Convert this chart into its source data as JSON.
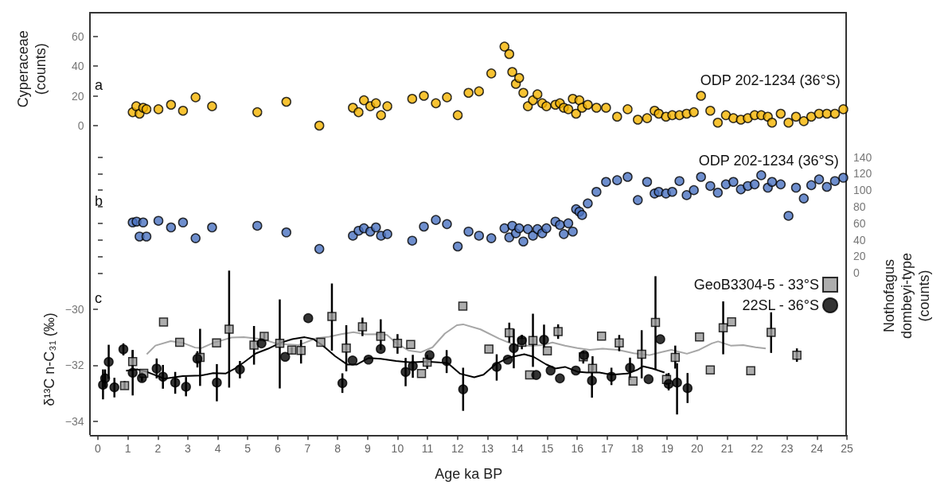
{
  "chart_data": [
    {
      "type": "scatter",
      "ylabel": "Cyperaceae\n(counts)",
      "annotations": [
        "a",
        "ODP 202-1234 (36°S)"
      ],
      "xlim": [
        -0.25,
        25
      ],
      "ylim": [
        0,
        76
      ],
      "yticks": [
        0,
        20,
        40,
        60
      ],
      "tick_labels": "y",
      "marker": "circle",
      "color": "#f5b400",
      "x": [
        1.16,
        1.28,
        1.39,
        1.51,
        1.62,
        2.02,
        2.44,
        2.84,
        3.26,
        3.81,
        5.32,
        6.29,
        7.39,
        8.51,
        8.7,
        8.88,
        9.09,
        9.28,
        9.45,
        9.66,
        10.49,
        10.88,
        11.28,
        11.65,
        12.01,
        12.37,
        12.72,
        13.13,
        13.57,
        13.73,
        13.83,
        13.95,
        14.06,
        14.2,
        14.35,
        14.52,
        14.67,
        14.83,
        14.97,
        15.27,
        15.42,
        15.55,
        15.7,
        15.85,
        15.96,
        16.07,
        16.16,
        16.35,
        16.64,
        16.96,
        17.33,
        17.68,
        18.02,
        18.33,
        18.58,
        18.72,
        18.96,
        19.17,
        19.41,
        19.65,
        19.89,
        20.13,
        20.44,
        20.69,
        20.96,
        21.21,
        21.46,
        21.69,
        21.92,
        22.14,
        22.36,
        22.5,
        22.79,
        23.05,
        23.3,
        23.56,
        23.81,
        24.07,
        24.33,
        24.6,
        24.88
      ],
      "values": [
        9,
        13,
        8,
        12,
        11,
        11,
        14,
        10,
        19,
        13,
        9,
        16,
        0,
        12,
        9,
        17,
        13,
        15,
        7,
        13,
        18,
        20,
        15,
        19,
        7,
        22,
        23,
        35,
        53,
        48,
        36,
        28,
        32,
        22,
        13,
        17,
        21,
        15,
        13,
        14,
        15,
        12,
        11,
        18,
        8,
        17,
        12,
        14,
        12,
        12,
        6,
        11,
        4,
        5,
        10,
        8,
        6,
        7,
        7,
        8,
        9,
        20,
        10,
        2,
        7,
        5,
        4,
        5,
        7,
        7,
        6,
        2,
        8,
        2,
        6,
        3,
        6,
        8,
        8,
        8,
        11
      ]
    },
    {
      "type": "scatter",
      "ylabel": "Nothofagus\ndombeyi-type\n(counts)",
      "annotations": [
        "b",
        "ODP 202-1234 (36°S)"
      ],
      "xlim": [
        -0.25,
        25
      ],
      "ylim": [
        -195,
        140
      ],
      "yticks": [
        0,
        20,
        40,
        60,
        80,
        100,
        120,
        140
      ],
      "tick_labels": "y",
      "marker": "circle",
      "color": "#4a72c0",
      "x": [
        1.16,
        1.29,
        1.39,
        1.51,
        1.62,
        2.02,
        2.44,
        2.84,
        3.26,
        3.81,
        5.32,
        6.29,
        7.39,
        8.51,
        8.7,
        8.88,
        9.09,
        9.28,
        9.45,
        9.66,
        10.49,
        10.88,
        11.28,
        11.65,
        12.01,
        12.37,
        12.72,
        13.13,
        13.57,
        13.73,
        13.83,
        13.95,
        14.06,
        14.2,
        14.35,
        14.52,
        14.67,
        14.83,
        14.97,
        15.27,
        15.42,
        15.55,
        15.7,
        15.85,
        15.96,
        16.07,
        16.16,
        16.35,
        16.64,
        16.96,
        17.33,
        17.68,
        18.02,
        18.33,
        18.58,
        18.72,
        18.96,
        19.17,
        19.41,
        19.65,
        19.89,
        20.13,
        20.44,
        20.69,
        20.96,
        21.21,
        21.46,
        21.69,
        21.92,
        22.14,
        22.36,
        22.5,
        22.79,
        23.05,
        23.3,
        23.56,
        23.81,
        24.07,
        24.33,
        24.6,
        24.88
      ],
      "values": [
        61,
        62,
        44,
        61,
        44,
        63,
        55,
        61,
        42,
        55,
        57,
        49,
        29,
        45,
        51,
        54,
        50,
        55,
        45,
        47,
        39,
        56,
        64,
        59,
        32,
        50,
        45,
        42,
        54,
        43,
        57,
        48,
        54,
        38,
        53,
        45,
        53,
        48,
        54,
        62,
        58,
        47,
        60,
        50,
        77,
        74,
        70,
        84,
        98,
        110,
        112,
        116,
        88,
        110,
        96,
        98,
        96,
        98,
        111,
        94,
        100,
        116,
        105,
        97,
        107,
        110,
        101,
        105,
        107,
        118,
        103,
        110,
        107,
        69,
        103,
        90,
        106,
        113,
        104,
        111,
        115
      ]
    },
    {
      "type": "scatter",
      "xlabel": "Age ka BP",
      "ylabel": "δ¹³C n-C₃₁ (‰)",
      "annotations": [
        "c"
      ],
      "xlim": [
        -0.25,
        25
      ],
      "xticks": [
        0,
        1,
        2,
        3,
        4,
        5,
        6,
        7,
        8,
        9,
        10,
        11,
        12,
        13,
        14,
        15,
        16,
        17,
        18,
        19,
        20,
        21,
        22,
        23,
        24,
        25
      ],
      "ylim": [
        -34.5,
        -19.4
      ],
      "yticks": [
        -34,
        -32,
        -30
      ],
      "legend": "right",
      "series": [
        {
          "name": "GeoB3304-5 - 33°S",
          "marker": "square",
          "color": "#999999",
          "x": [
            0.89,
            1.16,
            1.53,
            2.19,
            2.73,
            3.41,
            3.96,
            4.38,
            5.21,
            5.55,
            6.07,
            6.47,
            6.78,
            7.44,
            7.81,
            8.29,
            8.83,
            9.44,
            10.0,
            10.44,
            10.8,
            10.99,
            12.18,
            13.05,
            13.73,
            14.15,
            14.41,
            14.52,
            15.0,
            15.36,
            16.2,
            16.51,
            16.81,
            17.4,
            17.86,
            18.15,
            18.61,
            18.98,
            19.27,
            20.08,
            20.44,
            20.87,
            21.15,
            21.79,
            22.47,
            23.33
          ],
          "values": [
            -32.73,
            -31.87,
            -32.29,
            -30.46,
            -31.18,
            -31.72,
            -31.2,
            -30.71,
            -31.28,
            -30.97,
            -31.22,
            -31.46,
            -31.47,
            -31.18,
            -30.26,
            -31.39,
            -30.63,
            -30.97,
            -31.22,
            -31.26,
            -32.3,
            -31.89,
            -29.89,
            -31.42,
            -30.84,
            -31.18,
            -32.35,
            -31.12,
            -31.49,
            -30.8,
            -31.7,
            -32.11,
            -30.96,
            -31.2,
            -32.57,
            -31.61,
            -30.47,
            -32.51,
            -31.72,
            -30.99,
            -32.17,
            -30.66,
            -30.45,
            -32.2,
            -30.83,
            -31.64
          ],
          "errors": [
            [
              -32.85,
              -32.57
            ],
            [
              -32.2,
              -31.46
            ],
            null,
            null,
            null,
            [
              -32.74,
              -30.7
            ],
            null,
            [
              -32.8,
              -28.62
            ],
            [
              -31.98,
              -30.6
            ],
            [
              -31.15,
              -30.85
            ],
            [
              -32.83,
              -29.65
            ],
            [
              -31.6,
              -31.35
            ],
            [
              -31.94,
              -31.09
            ],
            null,
            [
              -31.48,
              -29.08
            ],
            [
              -32.22,
              -30.57
            ],
            [
              -30.96,
              -30.3
            ],
            [
              -31.45,
              -30.36
            ],
            [
              -31.59,
              -30.89
            ],
            null,
            null,
            [
              -32.13,
              -31.63
            ],
            null,
            null,
            [
              -31.19,
              -30.48
            ],
            [
              -31.43,
              -30.92
            ],
            null,
            [
              -32.06,
              -30.16
            ],
            null,
            [
              -31.06,
              -30.54
            ],
            [
              -31.94,
              -31.48
            ],
            [
              -32.2,
              -31.68
            ],
            null,
            [
              -31.5,
              -30.92
            ],
            null,
            [
              -32.47,
              -30.75
            ],
            [
              -32.14,
              -28.82
            ],
            [
              -32.7,
              -32.3
            ],
            [
              -32.12,
              -31.3
            ],
            null,
            null,
            [
              -31.61,
              -29.72
            ],
            null,
            null,
            [
              -31.56,
              -30.11
            ],
            [
              -31.88,
              -31.4
            ]
          ]
        },
        {
          "name": "22SL - 36°S",
          "marker": "circle",
          "color": "#000000",
          "x": [
            0.17,
            0.24,
            0.36,
            0.55,
            0.85,
            1.16,
            1.47,
            1.96,
            2.17,
            2.58,
            2.94,
            3.32,
            3.97,
            4.74,
            5.46,
            6.25,
            7.02,
            8.16,
            8.5,
            9.03,
            9.44,
            10.27,
            10.51,
            11.07,
            11.64,
            12.19,
            13.31,
            13.68,
            13.88,
            14.15,
            14.63,
            14.89,
            15.11,
            15.42,
            15.95,
            16.23,
            16.49,
            17.14,
            17.76,
            18.38,
            18.77,
            19.05,
            19.33,
            19.68
          ],
          "values": [
            -32.7,
            -32.47,
            -31.88,
            -32.79,
            -31.43,
            -32.27,
            -32.46,
            -32.12,
            -32.41,
            -32.62,
            -32.77,
            -31.77,
            -32.62,
            -32.15,
            -31.22,
            -31.7,
            -30.32,
            -32.64,
            -31.83,
            -31.8,
            -31.42,
            -32.24,
            -32.03,
            -31.64,
            -31.85,
            -32.86,
            -32.06,
            -31.8,
            -31.39,
            -31.11,
            -32.35,
            -31.09,
            -32.19,
            -32.47,
            -32.19,
            -31.64,
            -32.55,
            -32.41,
            -32.09,
            -32.5,
            -31.07,
            -32.67,
            -32.62,
            -32.82
          ],
          "errors": [
            [
              -33.22,
              -32.15
            ],
            [
              -32.8,
              -32.15
            ],
            [
              -32.48,
              -31.27
            ],
            [
              -33.15,
              -32.45
            ],
            [
              -31.65,
              -31.22
            ],
            [
              -33.08,
              -31.46
            ],
            [
              -32.58,
              -32.24
            ],
            [
              -32.47,
              -31.76
            ],
            [
              -32.84,
              -31.99
            ],
            [
              -33.02,
              -32.24
            ],
            [
              -33.11,
              -32.42
            ],
            [
              -32.08,
              -31.5
            ],
            [
              -33.29,
              -31.96
            ],
            [
              -32.47,
              -31.85
            ],
            null,
            null,
            null,
            [
              -32.99,
              -32.29
            ],
            null,
            null,
            null,
            [
              -32.75,
              -31.74
            ],
            [
              -32.45,
              -31.63
            ],
            null,
            [
              -32.28,
              -31.46
            ],
            [
              -33.63,
              -32.09
            ],
            [
              -32.55,
              -31.61
            ],
            null,
            [
              -32.11,
              -30.7
            ],
            [
              -31.28,
              -30.92
            ],
            null,
            [
              -31.4,
              -30.55
            ],
            null,
            null,
            null,
            null,
            [
              -33.16,
              -31.97
            ],
            [
              -32.71,
              -32.09
            ],
            [
              -32.53,
              -31.73
            ],
            null,
            null,
            [
              -32.9,
              -32.28
            ],
            [
              -33.76,
              -31.93
            ],
            [
              -33.35,
              -32.28
            ]
          ]
        },
        {
          "type": "line",
          "marker": "none",
          "color": "#a6a6a6",
          "x": [
            1.63,
            1.92,
            2.43,
            2.83,
            3.24,
            3.45,
            3.86,
            4.46,
            4.87,
            5.48,
            5.88,
            6.29,
            6.7,
            6.9,
            7.31,
            7.72,
            8.12,
            8.53,
            8.93,
            9.34,
            9.65,
            9.95,
            10.36,
            10.77,
            11.17,
            11.58,
            11.98,
            12.19,
            12.77,
            13.39,
            13.92,
            14.44,
            14.85,
            15.17,
            15.59,
            16.0,
            16.42,
            16.84,
            17.36,
            17.88,
            18.41,
            18.82,
            19.14,
            19.66,
            20.07,
            20.49,
            20.7,
            21.12,
            21.54,
            21.95,
            22.29
          ],
          "values": [
            -31.61,
            -31.3,
            -31.14,
            -31.2,
            -31.37,
            -31.39,
            -31.2,
            -31.01,
            -31.0,
            -31.07,
            -31.2,
            -31.25,
            -31.28,
            -31.2,
            -31.03,
            -30.98,
            -30.89,
            -30.82,
            -30.9,
            -30.89,
            -30.92,
            -31.2,
            -31.47,
            -31.54,
            -31.36,
            -30.87,
            -30.57,
            -30.54,
            -30.72,
            -31.05,
            -31.28,
            -31.31,
            -31.28,
            -31.19,
            -31.3,
            -31.39,
            -31.45,
            -31.41,
            -31.45,
            -31.57,
            -31.64,
            -31.53,
            -31.45,
            -31.59,
            -31.45,
            -31.22,
            -31.15,
            -31.3,
            -31.28,
            -31.36,
            -31.4
          ]
        },
        {
          "type": "line",
          "marker": "none",
          "color": "#000000",
          "x": [
            0.94,
            1.31,
            1.61,
            2.22,
            2.83,
            3.44,
            3.85,
            4.26,
            4.57,
            4.87,
            5.27,
            5.68,
            6.09,
            6.49,
            6.9,
            7.2,
            7.51,
            7.92,
            8.33,
            8.63,
            9.04,
            9.44,
            9.95,
            10.46,
            10.97,
            11.37,
            11.68,
            12.08,
            12.56,
            12.87,
            13.29,
            13.71,
            14.23,
            14.54,
            14.96,
            15.27,
            15.59,
            16.0,
            16.32,
            16.74,
            17.15,
            17.68,
            17.99,
            18.2,
            18.51,
            18.91
          ],
          "values": [
            -32.2,
            -32.15,
            -32.23,
            -32.48,
            -32.39,
            -32.37,
            -32.28,
            -32.3,
            -32.12,
            -31.9,
            -31.58,
            -31.41,
            -31.2,
            -31.07,
            -31.0,
            -31.07,
            -31.3,
            -31.68,
            -31.98,
            -31.98,
            -31.74,
            -31.77,
            -31.85,
            -31.9,
            -31.87,
            -31.9,
            -31.93,
            -32.3,
            -32.43,
            -32.34,
            -31.95,
            -31.73,
            -31.61,
            -31.7,
            -31.97,
            -32.12,
            -32.06,
            -32.23,
            -32.26,
            -32.26,
            -32.34,
            -32.3,
            -32.17,
            -32.04,
            -32.12,
            -32.26
          ]
        }
      ]
    }
  ]
}
